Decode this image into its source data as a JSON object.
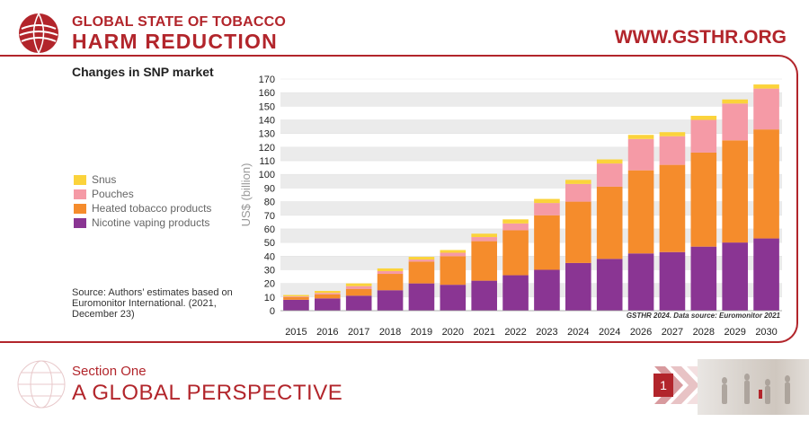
{
  "header": {
    "brand_line1": "GLOBAL STATE OF TOBACCO",
    "brand_line2": "HARM REDUCTION",
    "website": "WWW.GSTHR.ORG"
  },
  "legend": {
    "items": [
      {
        "label": "Snus",
        "color": "#fbd33b"
      },
      {
        "label": "Pouches",
        "color": "#f59aa6"
      },
      {
        "label": "Heated tobacco products",
        "color": "#f58c2c"
      },
      {
        "label": "Nicotine vaping products",
        "color": "#8a3593"
      }
    ]
  },
  "source": "Source: Authors’ estimates based on Euromonitor International. (2021, December 23)",
  "watermark": "GSTHR 2024. Data source: Euromonitor 2021",
  "footer": {
    "section_label": "Section One",
    "section_title": "A GLOBAL PERSPECTIVE",
    "section_number": "1"
  },
  "chart_data": {
    "type": "bar",
    "stacked": true,
    "title": "Changes in SNP market",
    "ylabel": "US$ (billion)",
    "ylim": [
      0,
      170
    ],
    "ytick_step": 10,
    "grid": true,
    "legend_position": "left",
    "categories": [
      "2015",
      "2016",
      "2017",
      "2018",
      "2019",
      "2020",
      "2021",
      "2022",
      "2023",
      "2024",
      "2024",
      "2026",
      "2027",
      "2028",
      "2029",
      "2030"
    ],
    "series": [
      {
        "name": "Nicotine vaping products",
        "color": "#8a3593",
        "values": [
          8,
          9,
          11,
          15,
          20,
          19,
          22,
          26,
          30,
          35,
          38,
          42,
          43,
          47,
          50,
          53
        ]
      },
      {
        "name": "Heated tobacco products",
        "color": "#f58c2c",
        "values": [
          2,
          3,
          5,
          12,
          16,
          21,
          29,
          33,
          40,
          45,
          53,
          61,
          64,
          69,
          75,
          80
        ]
      },
      {
        "name": "Pouches",
        "color": "#f59aa6",
        "values": [
          0.5,
          1,
          2,
          2,
          1.5,
          2.5,
          3,
          5,
          9,
          13,
          17,
          23,
          21,
          24,
          27,
          30
        ]
      },
      {
        "name": "Snus",
        "color": "#fbd33b",
        "values": [
          1,
          1.5,
          2,
          2,
          2,
          2,
          2.5,
          3,
          3,
          3,
          3,
          3,
          3,
          3,
          3,
          3
        ]
      }
    ]
  }
}
